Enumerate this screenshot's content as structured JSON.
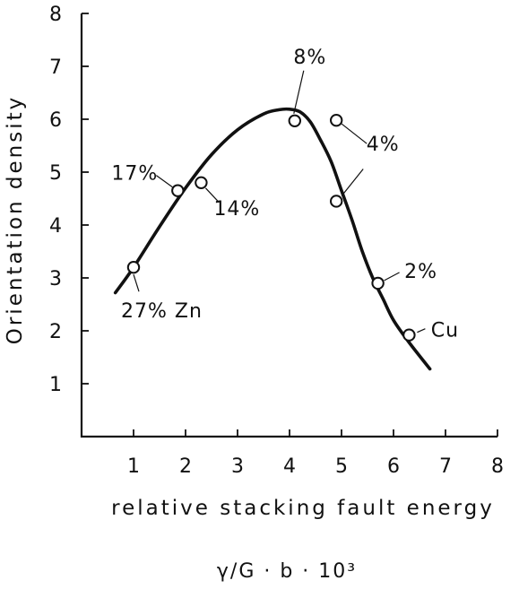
{
  "chart_data": {
    "type": "scatter",
    "title": "",
    "xlabel": "relative stacking fault energy",
    "xunit": "γ/G · b · 10³",
    "ylabel": "Orientation density",
    "xlim": [
      0,
      8
    ],
    "ylim": [
      0,
      8
    ],
    "xticks": [
      "1",
      "2",
      "3",
      "4",
      "5",
      "6",
      "7",
      "8"
    ],
    "yticks": [
      "1",
      "2",
      "3",
      "4",
      "5",
      "6",
      "7",
      "8"
    ],
    "grid": false,
    "points": [
      {
        "x": 1.0,
        "y": 3.2,
        "label": "27% Zn"
      },
      {
        "x": 1.85,
        "y": 4.65,
        "label": "17%"
      },
      {
        "x": 2.3,
        "y": 4.8,
        "label": "14%"
      },
      {
        "x": 4.1,
        "y": 5.97,
        "label": "8%"
      },
      {
        "x": 4.9,
        "y": 5.98,
        "label": "4%"
      },
      {
        "x": 4.9,
        "y": 4.45,
        "label": ""
      },
      {
        "x": 5.7,
        "y": 2.9,
        "label": "2%"
      },
      {
        "x": 6.3,
        "y": 1.92,
        "label": "Cu"
      }
    ],
    "fit_curve": {
      "x": [
        0.65,
        1.0,
        1.5,
        2.0,
        2.5,
        3.0,
        3.5,
        3.8,
        4.0,
        4.2,
        4.4,
        4.6,
        4.8,
        5.0,
        5.2,
        5.4,
        5.6,
        5.8,
        6.0,
        6.3,
        6.7
      ],
      "y": [
        2.72,
        3.2,
        3.97,
        4.7,
        5.33,
        5.8,
        6.1,
        6.18,
        6.19,
        6.14,
        5.95,
        5.6,
        5.2,
        4.65,
        4.1,
        3.5,
        3.0,
        2.6,
        2.2,
        1.78,
        1.28
      ]
    }
  }
}
